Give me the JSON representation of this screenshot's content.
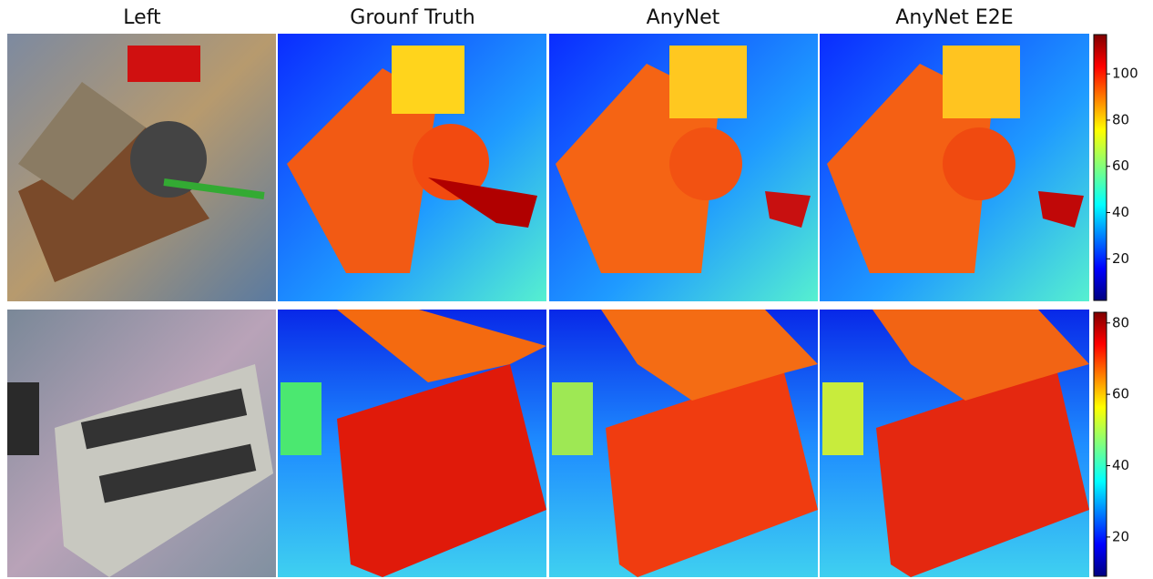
{
  "headers": [
    "Left",
    "Grounf Truth",
    "AnyNet",
    "AnyNet E2E"
  ],
  "colorbars": [
    {
      "lim": [
        2,
        117
      ],
      "ticks": [
        20,
        40,
        60,
        80,
        100
      ]
    },
    {
      "lim": [
        9,
        83
      ],
      "ticks": [
        20,
        40,
        60,
        80
      ]
    }
  ]
}
